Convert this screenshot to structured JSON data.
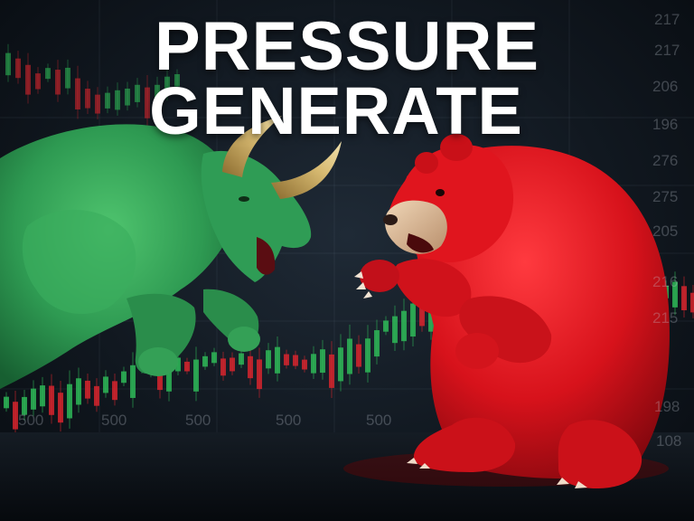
{
  "headline": {
    "line1": "PRESSURE",
    "line2": "GENERATE"
  },
  "colors": {
    "bull": "#2e9a52",
    "bear": "#d7121b",
    "text": "#ffffff"
  },
  "price_axis_labels": [
    "217",
    "206",
    "196",
    "276",
    "275",
    "205",
    "216",
    "215",
    "198",
    "108"
  ],
  "bottom_axis_labels": [
    "500",
    "500",
    "500",
    "500",
    "500"
  ]
}
